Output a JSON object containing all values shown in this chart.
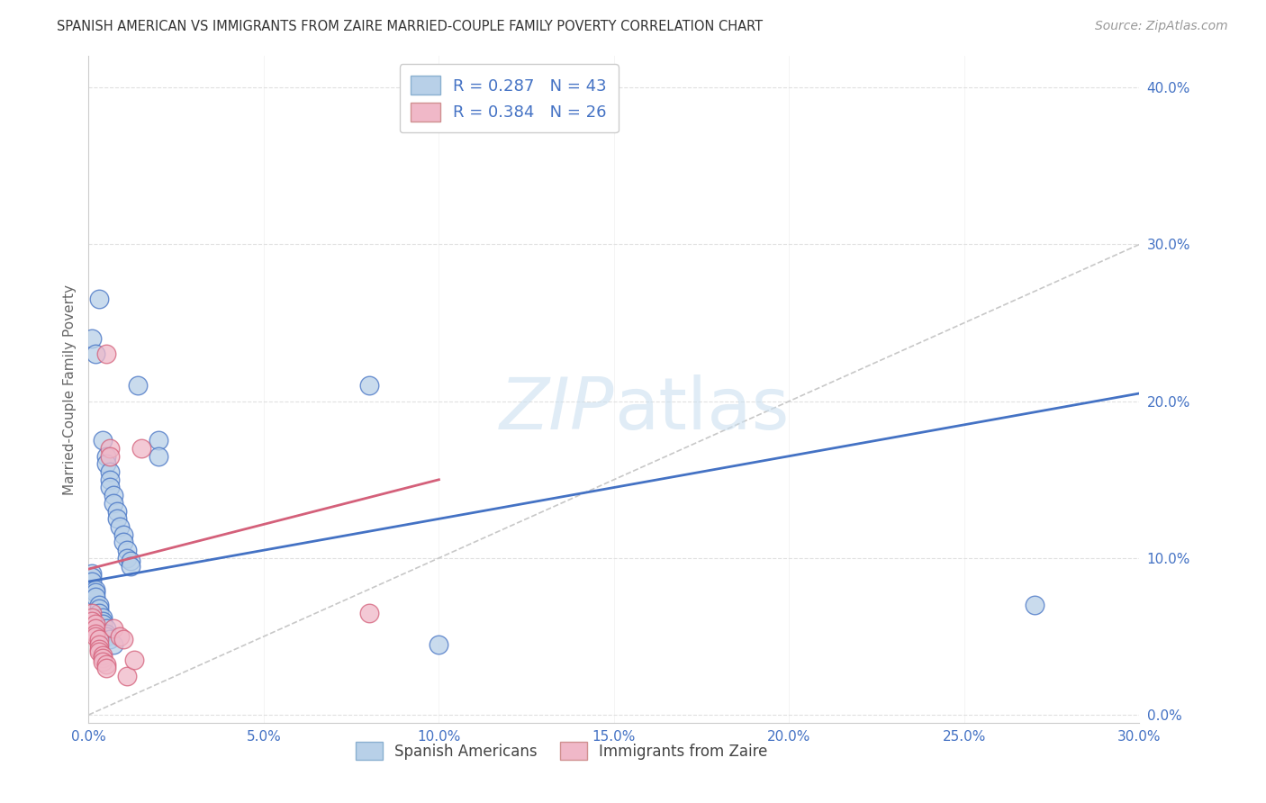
{
  "title": "SPANISH AMERICAN VS IMMIGRANTS FROM ZAIRE MARRIED-COUPLE FAMILY POVERTY CORRELATION CHART",
  "source": "Source: ZipAtlas.com",
  "xlabel_range": [
    0.0,
    0.3
  ],
  "ylabel_range": [
    -0.005,
    0.42
  ],
  "legend_label1": "R = 0.287   N = 43",
  "legend_label2": "R = 0.384   N = 26",
  "legend_color1": "#b8d0e8",
  "legend_color2": "#f0b8c8",
  "line_color1": "#4472c4",
  "line_color2": "#d4607a",
  "diag_color": "#c8c8c8",
  "ylabel": "Married-Couple Family Poverty",
  "legend_entries": [
    "Spanish Americans",
    "Immigrants from Zaire"
  ],
  "scatter_blue": [
    [
      0.001,
      0.24
    ],
    [
      0.002,
      0.23
    ],
    [
      0.003,
      0.265
    ],
    [
      0.004,
      0.175
    ],
    [
      0.005,
      0.165
    ],
    [
      0.005,
      0.16
    ],
    [
      0.006,
      0.155
    ],
    [
      0.006,
      0.15
    ],
    [
      0.006,
      0.145
    ],
    [
      0.007,
      0.14
    ],
    [
      0.007,
      0.135
    ],
    [
      0.008,
      0.13
    ],
    [
      0.008,
      0.125
    ],
    [
      0.009,
      0.12
    ],
    [
      0.01,
      0.115
    ],
    [
      0.01,
      0.11
    ],
    [
      0.011,
      0.105
    ],
    [
      0.011,
      0.1
    ],
    [
      0.012,
      0.098
    ],
    [
      0.012,
      0.095
    ],
    [
      0.001,
      0.09
    ],
    [
      0.001,
      0.088
    ],
    [
      0.001,
      0.085
    ],
    [
      0.002,
      0.08
    ],
    [
      0.002,
      0.078
    ],
    [
      0.002,
      0.075
    ],
    [
      0.003,
      0.07
    ],
    [
      0.003,
      0.068
    ],
    [
      0.003,
      0.065
    ],
    [
      0.004,
      0.062
    ],
    [
      0.004,
      0.06
    ],
    [
      0.004,
      0.058
    ],
    [
      0.005,
      0.055
    ],
    [
      0.005,
      0.052
    ],
    [
      0.005,
      0.05
    ],
    [
      0.006,
      0.048
    ],
    [
      0.007,
      0.045
    ],
    [
      0.014,
      0.21
    ],
    [
      0.02,
      0.175
    ],
    [
      0.02,
      0.165
    ],
    [
      0.08,
      0.21
    ],
    [
      0.27,
      0.07
    ],
    [
      0.1,
      0.045
    ]
  ],
  "scatter_pink": [
    [
      0.001,
      0.065
    ],
    [
      0.001,
      0.062
    ],
    [
      0.001,
      0.06
    ],
    [
      0.002,
      0.058
    ],
    [
      0.002,
      0.055
    ],
    [
      0.002,
      0.052
    ],
    [
      0.002,
      0.05
    ],
    [
      0.003,
      0.048
    ],
    [
      0.003,
      0.045
    ],
    [
      0.003,
      0.042
    ],
    [
      0.003,
      0.04
    ],
    [
      0.004,
      0.038
    ],
    [
      0.004,
      0.036
    ],
    [
      0.004,
      0.034
    ],
    [
      0.005,
      0.032
    ],
    [
      0.005,
      0.03
    ],
    [
      0.005,
      0.23
    ],
    [
      0.006,
      0.17
    ],
    [
      0.006,
      0.165
    ],
    [
      0.007,
      0.055
    ],
    [
      0.009,
      0.05
    ],
    [
      0.01,
      0.048
    ],
    [
      0.011,
      0.025
    ],
    [
      0.013,
      0.035
    ],
    [
      0.015,
      0.17
    ],
    [
      0.08,
      0.065
    ]
  ],
  "blue_line_x": [
    0.0,
    0.3
  ],
  "blue_line_y": [
    0.085,
    0.205
  ],
  "pink_line_x": [
    0.0,
    0.1
  ],
  "pink_line_y": [
    0.093,
    0.15
  ],
  "diag_line_x": [
    0.0,
    0.3
  ],
  "diag_line_y": [
    0.0,
    0.3
  ],
  "x_ticks": [
    0.0,
    0.05,
    0.1,
    0.15,
    0.2,
    0.25,
    0.3
  ],
  "y_ticks": [
    0.0,
    0.1,
    0.2,
    0.3,
    0.4
  ],
  "text_color_blue": "#4472c4",
  "background_color": "#ffffff",
  "grid_color": "#e0e0e0"
}
